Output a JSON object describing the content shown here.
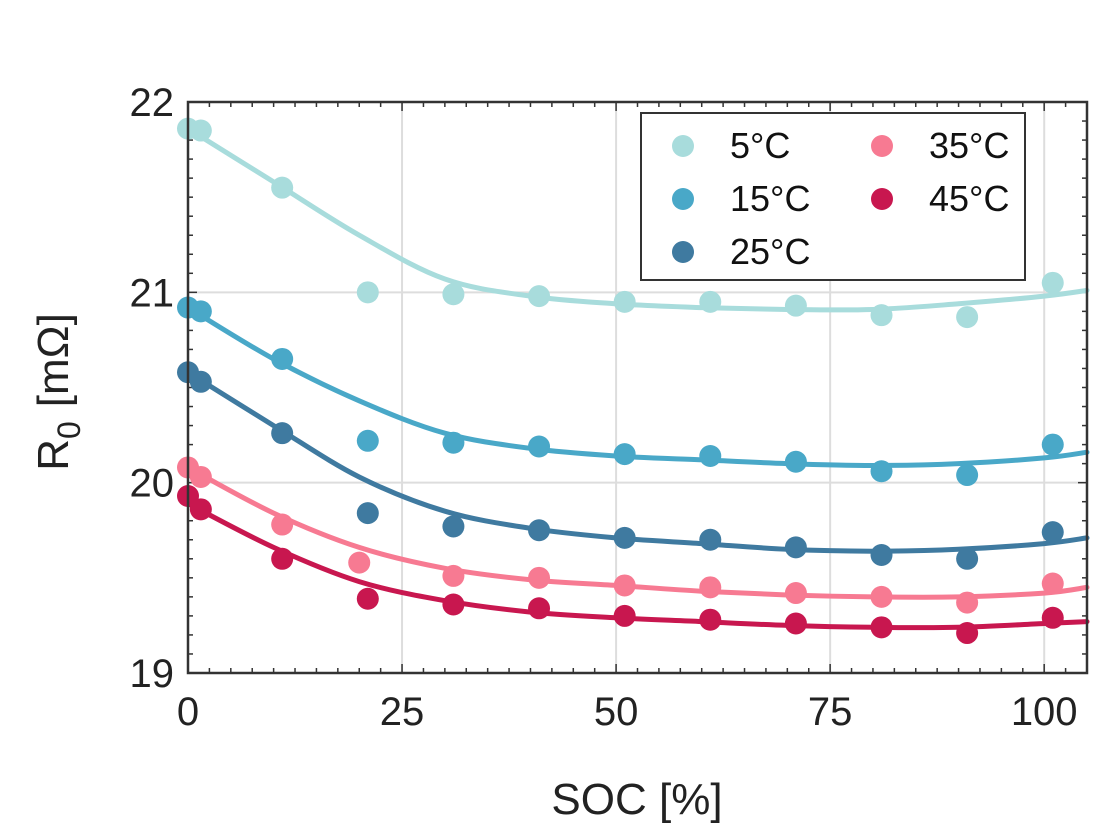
{
  "chart_data": {
    "type": "scatter",
    "xlabel": "SOC [%]",
    "ylabel_main": "R",
    "ylabel_sub": "0",
    "ylabel_unit": "[mΩ]",
    "xlim": [
      0,
      105
    ],
    "ylim": [
      19,
      22
    ],
    "xticks": [
      "0",
      "25",
      "50",
      "75",
      "100"
    ],
    "xtick_values": [
      0,
      25,
      50,
      75,
      100
    ],
    "yticks": [
      "19",
      "20",
      "21",
      "22"
    ],
    "ytick_values": [
      19,
      20,
      21,
      22
    ],
    "grid": true,
    "legend_position": "top-right",
    "series": [
      {
        "name": "5°C",
        "color": "#a8dcdc",
        "points": [
          [
            0,
            21.86
          ],
          [
            1.5,
            21.85
          ],
          [
            11,
            21.55
          ],
          [
            21,
            21.0
          ],
          [
            31,
            20.99
          ],
          [
            41,
            20.98
          ],
          [
            51,
            20.95
          ],
          [
            61,
            20.95
          ],
          [
            71,
            20.93
          ],
          [
            81,
            20.88
          ],
          [
            91,
            20.87
          ],
          [
            101,
            21.05
          ]
        ],
        "fit": [
          [
            0,
            21.86
          ],
          [
            10,
            21.58
          ],
          [
            20,
            21.3
          ],
          [
            30,
            21.07
          ],
          [
            40,
            20.98
          ],
          [
            50,
            20.94
          ],
          [
            60,
            20.92
          ],
          [
            70,
            20.91
          ],
          [
            80,
            20.91
          ],
          [
            90,
            20.94
          ],
          [
            100,
            20.98
          ],
          [
            105,
            21.01
          ]
        ]
      },
      {
        "name": "15°C",
        "color": "#49a8c8",
        "points": [
          [
            0,
            20.92
          ],
          [
            1.5,
            20.9
          ],
          [
            11,
            20.65
          ],
          [
            21,
            20.22
          ],
          [
            31,
            20.21
          ],
          [
            41,
            20.19
          ],
          [
            51,
            20.15
          ],
          [
            61,
            20.14
          ],
          [
            71,
            20.11
          ],
          [
            81,
            20.06
          ],
          [
            91,
            20.04
          ],
          [
            101,
            20.2
          ]
        ],
        "fit": [
          [
            0,
            20.92
          ],
          [
            10,
            20.65
          ],
          [
            20,
            20.43
          ],
          [
            30,
            20.26
          ],
          [
            40,
            20.18
          ],
          [
            50,
            20.14
          ],
          [
            60,
            20.12
          ],
          [
            70,
            20.1
          ],
          [
            80,
            20.09
          ],
          [
            90,
            20.1
          ],
          [
            100,
            20.13
          ],
          [
            105,
            20.16
          ]
        ]
      },
      {
        "name": "25°C",
        "color": "#3f7aa0",
        "points": [
          [
            0,
            20.58
          ],
          [
            1.5,
            20.53
          ],
          [
            11,
            20.26
          ],
          [
            21,
            19.84
          ],
          [
            31,
            19.77
          ],
          [
            41,
            19.75
          ],
          [
            51,
            19.71
          ],
          [
            61,
            19.7
          ],
          [
            71,
            19.66
          ],
          [
            81,
            19.62
          ],
          [
            91,
            19.6
          ],
          [
            101,
            19.74
          ]
        ],
        "fit": [
          [
            0,
            20.58
          ],
          [
            10,
            20.3
          ],
          [
            20,
            20.03
          ],
          [
            30,
            19.85
          ],
          [
            40,
            19.76
          ],
          [
            50,
            19.71
          ],
          [
            60,
            19.68
          ],
          [
            70,
            19.65
          ],
          [
            80,
            19.64
          ],
          [
            90,
            19.65
          ],
          [
            100,
            19.68
          ],
          [
            105,
            19.71
          ]
        ]
      },
      {
        "name": "35°C",
        "color": "#f77a92",
        "points": [
          [
            0,
            20.08
          ],
          [
            1.5,
            20.03
          ],
          [
            11,
            19.78
          ],
          [
            20,
            19.58
          ],
          [
            31,
            19.51
          ],
          [
            41,
            19.5
          ],
          [
            51,
            19.46
          ],
          [
            61,
            19.45
          ],
          [
            71,
            19.42
          ],
          [
            81,
            19.4
          ],
          [
            91,
            19.37
          ],
          [
            101,
            19.47
          ]
        ],
        "fit": [
          [
            0,
            20.08
          ],
          [
            10,
            19.84
          ],
          [
            20,
            19.66
          ],
          [
            30,
            19.55
          ],
          [
            40,
            19.49
          ],
          [
            50,
            19.46
          ],
          [
            60,
            19.43
          ],
          [
            70,
            19.41
          ],
          [
            80,
            19.4
          ],
          [
            90,
            19.4
          ],
          [
            100,
            19.42
          ],
          [
            105,
            19.45
          ]
        ]
      },
      {
        "name": "45°C",
        "color": "#c8174f",
        "points": [
          [
            0,
            19.93
          ],
          [
            1.5,
            19.86
          ],
          [
            11,
            19.6
          ],
          [
            21,
            19.39
          ],
          [
            31,
            19.36
          ],
          [
            41,
            19.34
          ],
          [
            51,
            19.3
          ],
          [
            61,
            19.28
          ],
          [
            71,
            19.26
          ],
          [
            81,
            19.24
          ],
          [
            91,
            19.21
          ],
          [
            101,
            19.29
          ]
        ],
        "fit": [
          [
            0,
            19.89
          ],
          [
            10,
            19.66
          ],
          [
            20,
            19.48
          ],
          [
            30,
            19.38
          ],
          [
            40,
            19.32
          ],
          [
            50,
            19.29
          ],
          [
            60,
            19.27
          ],
          [
            70,
            19.25
          ],
          [
            80,
            19.24
          ],
          [
            90,
            19.24
          ],
          [
            100,
            19.26
          ],
          [
            105,
            19.27
          ]
        ]
      }
    ]
  }
}
